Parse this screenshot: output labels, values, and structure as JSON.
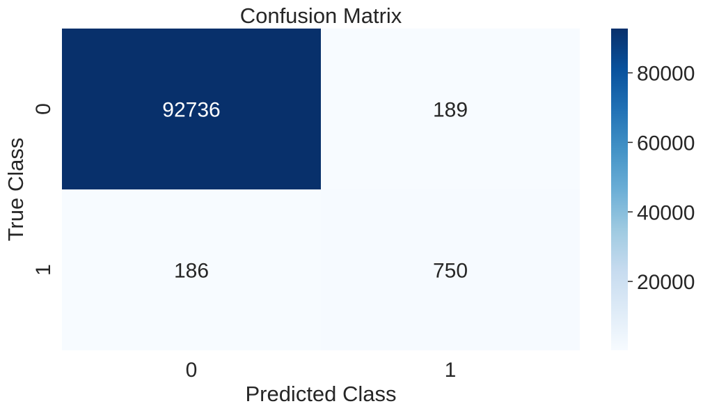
{
  "chart_data": {
    "type": "heatmap",
    "title": "Confusion Matrix",
    "xlabel": "Predicted Class",
    "ylabel": "True Class",
    "x_categories": [
      "0",
      "1"
    ],
    "y_categories": [
      "0",
      "1"
    ],
    "matrix": [
      [
        92736,
        189
      ],
      [
        186,
        750
      ]
    ],
    "colormap": "Blues",
    "colorbar": {
      "min": 186,
      "max": 92736,
      "ticks": [
        20000,
        40000,
        60000,
        80000
      ],
      "tick_labels": [
        "20000",
        "40000",
        "60000",
        "80000"
      ]
    },
    "annotation_colors": {
      "on_dark": "#ffffff",
      "on_light": "#262626"
    }
  }
}
